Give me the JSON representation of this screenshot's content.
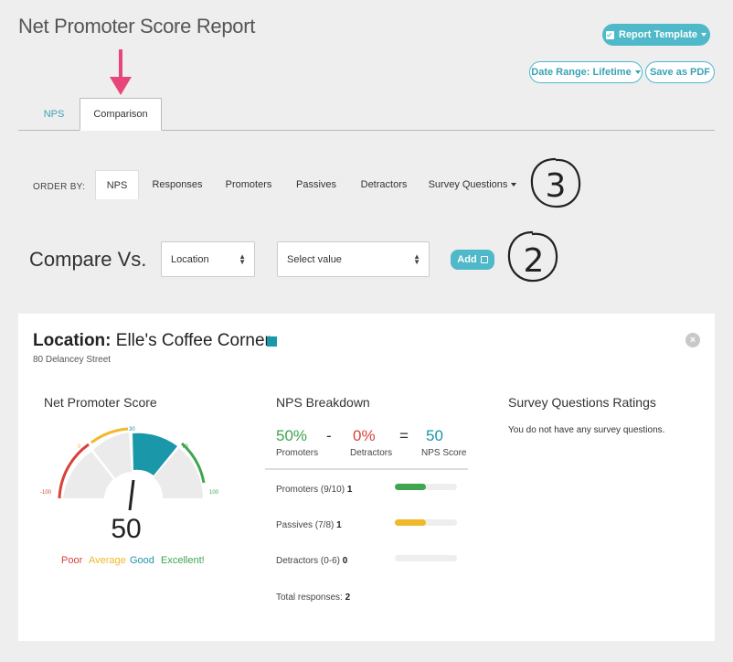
{
  "header": {
    "title": "Net Promoter Score Report",
    "report_template_label": "Report Template",
    "date_range_label": "Date Range: Lifetime",
    "save_pdf_label": "Save as PDF"
  },
  "tabs": [
    {
      "label": "NPS",
      "active": false
    },
    {
      "label": "Comparison",
      "active": true
    }
  ],
  "order_by": {
    "label": "ORDER BY:",
    "items": [
      "NPS",
      "Responses",
      "Promoters",
      "Passives",
      "Detractors",
      "Survey Questions"
    ],
    "active": "NPS"
  },
  "compare": {
    "label": "Compare Vs.",
    "dimension_value": "Location",
    "value_placeholder": "Select value",
    "add_label": "Add"
  },
  "annotations": {
    "step_3": "3",
    "step_2": "2"
  },
  "card": {
    "title_prefix": "Location:",
    "title_name": "Elle's Coffee Corner",
    "address": "80 Delancey Street",
    "swatch_color": "#1a97a8",
    "nps_section": {
      "title": "Net Promoter Score",
      "score": "50",
      "score_value": 50,
      "ticks": [
        "-100",
        "0",
        "30",
        "70",
        "100"
      ],
      "legend": [
        {
          "label": "Poor",
          "color": "#d9413a"
        },
        {
          "label": "Average",
          "color": "#f0b82b"
        },
        {
          "label": "Good",
          "color": "#1a97a8"
        },
        {
          "label": "Excellent!",
          "color": "#3fa54e"
        }
      ]
    },
    "breakdown": {
      "title": "NPS Breakdown",
      "promoters_pct": "50%",
      "promoters_label": "Promoters",
      "minus": "-",
      "detractors_pct": "0%",
      "detractors_label": "Detractors",
      "equals": "=",
      "nps_score": "50",
      "nps_score_label": "NPS Score",
      "rows": [
        {
          "label": "Promoters (9/10)",
          "count": "1",
          "fill_fraction": 0.5,
          "color": "#3fa54e"
        },
        {
          "label": "Passives (7/8)",
          "count": "1",
          "fill_fraction": 0.5,
          "color": "#f0b82b"
        },
        {
          "label": "Detractors (0-6)",
          "count": "0",
          "fill_fraction": 0,
          "color": "#d9413a"
        }
      ],
      "total_label": "Total responses:",
      "total_value": "2"
    },
    "survey": {
      "title": "Survey Questions Ratings",
      "empty_text": "You do not have any survey questions."
    }
  },
  "colors": {
    "accent": "#4fb9c9",
    "poor": "#d9413a",
    "average": "#f0b82b",
    "good": "#1a97a8",
    "excellent": "#3fa54e",
    "annotation_arrow": "#e8457a"
  }
}
